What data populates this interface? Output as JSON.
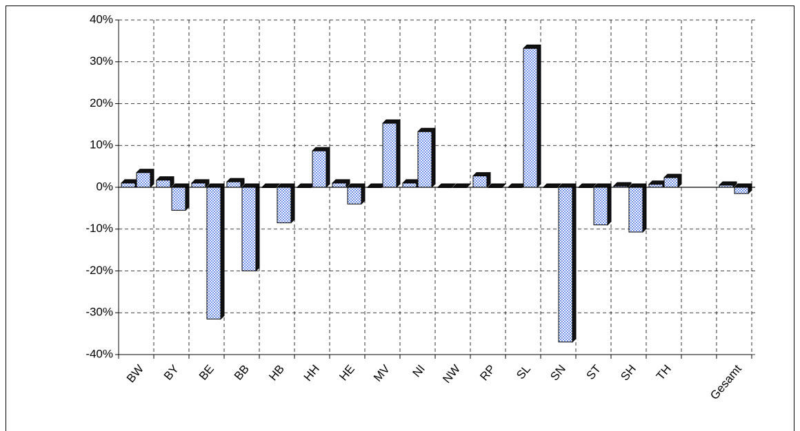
{
  "chart_data": {
    "type": "bar",
    "categories": [
      "BW",
      "BY",
      "BE",
      "BB",
      "HB",
      "HH",
      "HE",
      "MV",
      "NI",
      "NW",
      "RP",
      "SL",
      "SN",
      "ST",
      "SH",
      "TH",
      null,
      "Gesamt"
    ],
    "series": [
      {
        "color": "#6f8fe8",
        "values": [
          1,
          1.7,
          1,
          1.3,
          0,
          0,
          1,
          0,
          1,
          0,
          2.7,
          0,
          0,
          0,
          0.3,
          0.7,
          null,
          0.5
        ]
      },
      {
        "color": "#6f8fe8",
        "values": [
          3.5,
          -5.5,
          -31.5,
          -20,
          -8.5,
          8.7,
          -4,
          15.3,
          13.3,
          0,
          0,
          33.2,
          -37,
          -9,
          -10.7,
          2.3,
          null,
          -1.5
        ]
      }
    ],
    "ylim": [
      -40,
      40
    ],
    "yticks": [
      {
        "value": -40,
        "label": "-40%"
      },
      {
        "value": -30,
        "label": "-30%"
      },
      {
        "value": -20,
        "label": "-20%"
      },
      {
        "value": -10,
        "label": "-10%"
      },
      {
        "value": 0,
        "label": "0%"
      },
      {
        "value": 10,
        "label": "10%"
      },
      {
        "value": 20,
        "label": "20%"
      },
      {
        "value": 30,
        "label": "30%"
      },
      {
        "value": 40,
        "label": "40%"
      }
    ],
    "grid": true
  }
}
